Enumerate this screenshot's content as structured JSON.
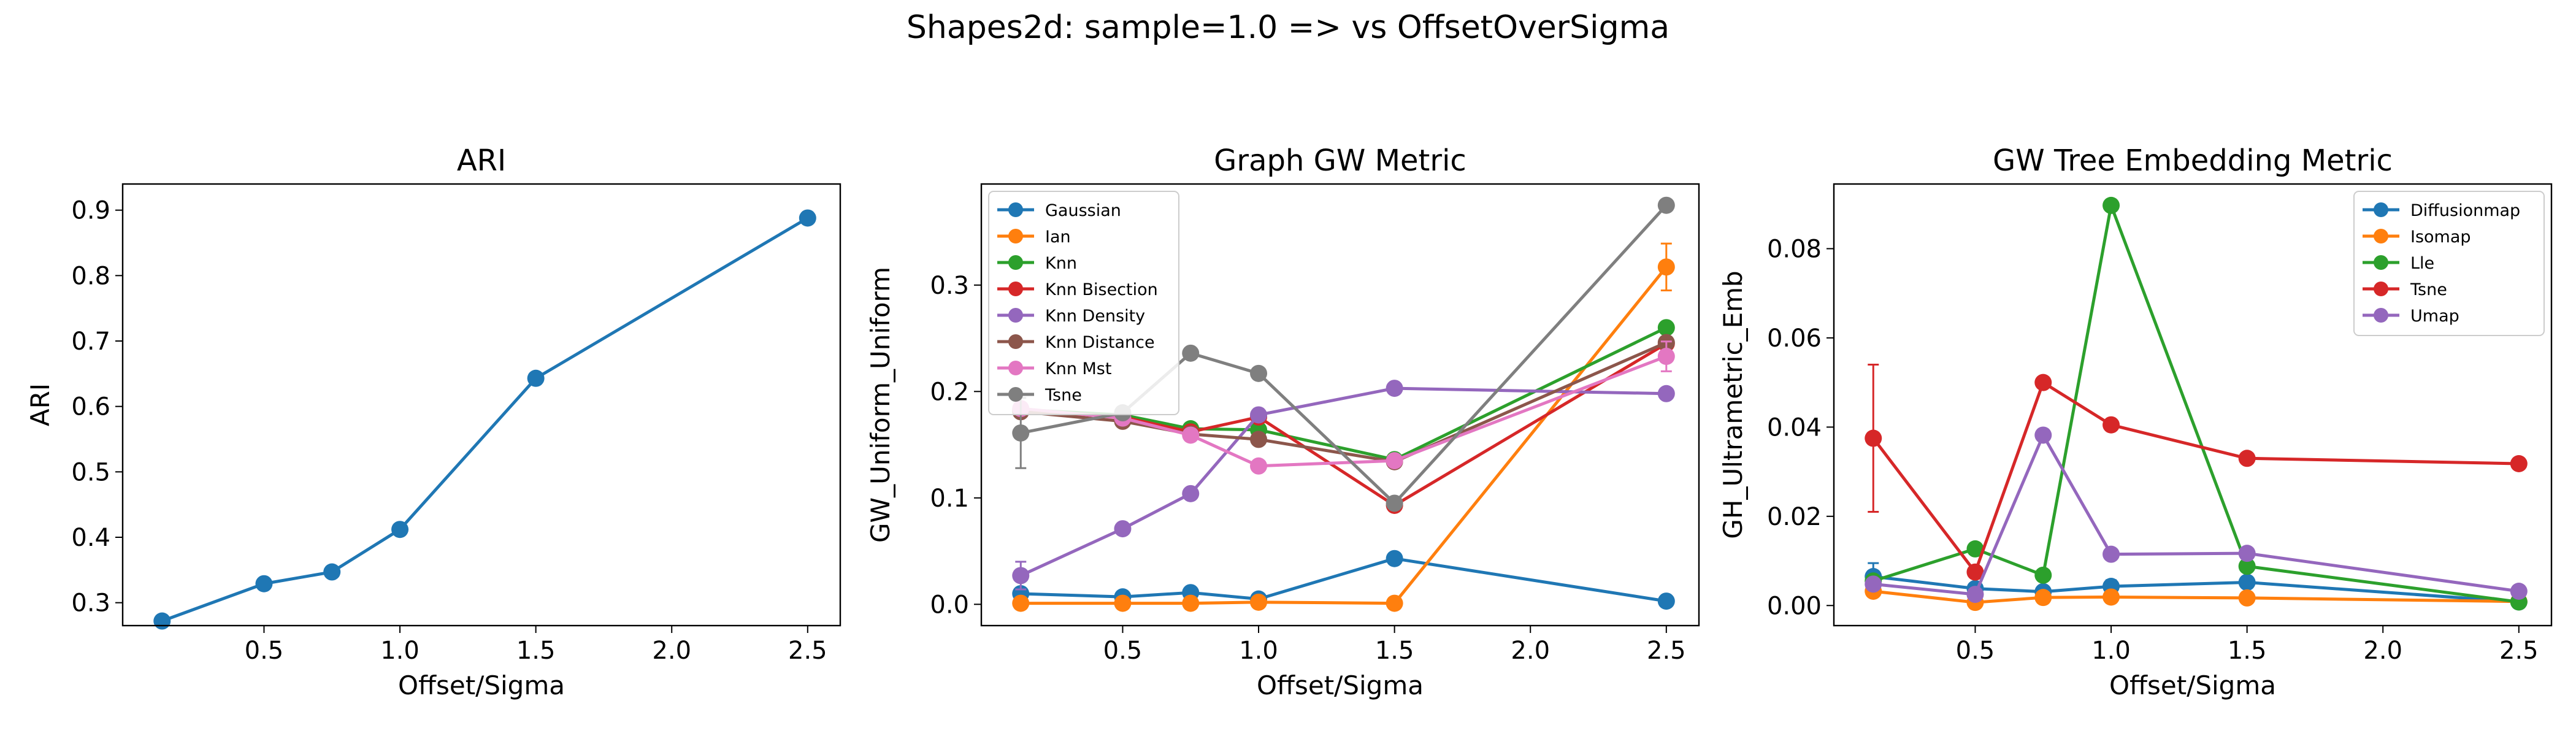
{
  "figure": {
    "suptitle": "Shapes2d: sample=1.0 => vs OffsetOverSigma"
  },
  "colors": {
    "Gaussian": "#1f77b4",
    "Ian": "#ff7f0e",
    "Knn": "#2ca02c",
    "Knn Bisection": "#d62728",
    "Knn Density": "#9467bd",
    "Knn Distance": "#8c564b",
    "Knn Mst": "#e377c2",
    "Tsne": "#7f7f7f"
  },
  "chart_data": [
    {
      "type": "line",
      "title": "ARI",
      "xlabel": "Offset/Sigma",
      "ylabel": "ARI",
      "xlim": [
        -0.02,
        2.62
      ],
      "ylim": [
        0.265,
        0.94
      ],
      "xticks": [
        0.5,
        1.0,
        1.5,
        2.0,
        2.5
      ],
      "xtick_labels": [
        "0.5",
        "1.0",
        "1.5",
        "2.0",
        "2.5"
      ],
      "yticks": [
        0.3,
        0.4,
        0.5,
        0.6,
        0.7,
        0.8,
        0.9
      ],
      "ytick_labels": [
        "0.3",
        "0.4",
        "0.5",
        "0.6",
        "0.7",
        "0.8",
        "0.9"
      ],
      "grid": false,
      "legend": null,
      "series": [
        {
          "color": "#1f77b4",
          "x": [
            0.125,
            0.5,
            0.75,
            1.0,
            1.5,
            2.5
          ],
          "y": [
            0.272,
            0.329,
            0.347,
            0.412,
            0.643,
            0.888
          ],
          "err": [
            0.008,
            0.004,
            0.004,
            0.004,
            0.003,
            0.003
          ]
        }
      ]
    },
    {
      "type": "line",
      "title": "Graph GW Metric",
      "xlabel": "Offset/Sigma",
      "ylabel": "GW_Uniform_Uniform",
      "xlim": [
        -0.02,
        2.62
      ],
      "ylim": [
        -0.02,
        0.395
      ],
      "xticks": [
        0.5,
        1.0,
        1.5,
        2.0,
        2.5
      ],
      "xtick_labels": [
        "0.5",
        "1.0",
        "1.5",
        "2.0",
        "2.5"
      ],
      "yticks": [
        0.0,
        0.1,
        0.2,
        0.3
      ],
      "ytick_labels": [
        "0.0",
        "0.1",
        "0.2",
        "0.3"
      ],
      "grid": false,
      "legend": "upper-left",
      "series": [
        {
          "name": "Gaussian",
          "color": "#1f77b4",
          "x": [
            0.125,
            0.5,
            0.75,
            1.0,
            1.5,
            2.5
          ],
          "y": [
            0.01,
            0.007,
            0.011,
            0.005,
            0.043,
            0.003
          ],
          "err": [
            0.003,
            0.002,
            0.002,
            0.002,
            0.002,
            0.001
          ]
        },
        {
          "name": "Ian",
          "color": "#ff7f0e",
          "x": [
            0.125,
            0.5,
            0.75,
            1.0,
            1.5,
            2.5
          ],
          "y": [
            0.001,
            0.001,
            0.001,
            0.002,
            0.001,
            0.317
          ],
          "err": [
            0.001,
            0.001,
            0.001,
            0.001,
            0.001,
            0.022
          ]
        },
        {
          "name": "Knn",
          "color": "#2ca02c",
          "x": [
            0.125,
            0.5,
            0.75,
            1.0,
            1.5,
            2.5
          ],
          "y": [
            0.183,
            0.178,
            0.165,
            0.164,
            0.136,
            0.26
          ],
          "err": [
            0.003,
            0.003,
            0.003,
            0.003,
            0.003,
            0.004
          ]
        },
        {
          "name": "Knn Bisection",
          "color": "#d62728",
          "x": [
            0.125,
            0.5,
            0.75,
            1.0,
            1.5,
            2.5
          ],
          "y": [
            0.182,
            0.176,
            0.162,
            0.176,
            0.093,
            0.245
          ],
          "err": [
            0.003,
            0.003,
            0.003,
            0.003,
            0.003,
            0.004
          ]
        },
        {
          "name": "Knn Density",
          "color": "#9467bd",
          "x": [
            0.125,
            0.5,
            0.75,
            1.0,
            1.5,
            2.5
          ],
          "y": [
            0.027,
            0.071,
            0.104,
            0.178,
            0.203,
            0.198
          ],
          "err": [
            0.013,
            0.003,
            0.003,
            0.003,
            0.003,
            0.003
          ]
        },
        {
          "name": "Knn Distance",
          "color": "#8c564b",
          "x": [
            0.125,
            0.5,
            0.75,
            1.0,
            1.5,
            2.5
          ],
          "y": [
            0.181,
            0.172,
            0.16,
            0.155,
            0.134,
            0.246
          ],
          "err": [
            0.003,
            0.003,
            0.003,
            0.003,
            0.003,
            0.004
          ]
        },
        {
          "name": "Knn Mst",
          "color": "#e377c2",
          "x": [
            0.125,
            0.5,
            0.75,
            1.0,
            1.5,
            2.5
          ],
          "y": [
            0.184,
            0.175,
            0.159,
            0.13,
            0.135,
            0.233
          ],
          "err": [
            0.003,
            0.003,
            0.003,
            0.003,
            0.003,
            0.014
          ]
        },
        {
          "name": "Tsne",
          "color": "#7f7f7f",
          "x": [
            0.125,
            0.5,
            0.75,
            1.0,
            1.5,
            2.5
          ],
          "y": [
            0.161,
            0.18,
            0.236,
            0.217,
            0.095,
            0.375
          ],
          "err": [
            0.033,
            0.004,
            0.003,
            0.003,
            0.003,
            0.003
          ]
        }
      ]
    },
    {
      "type": "line",
      "title": "GW Tree Embedding Metric",
      "xlabel": "Offset/Sigma",
      "ylabel": "GH_Ultrametric_Emb",
      "xlim": [
        -0.02,
        2.62
      ],
      "ylim": [
        -0.0045,
        0.0945
      ],
      "xticks": [
        0.5,
        1.0,
        1.5,
        2.0,
        2.5
      ],
      "xtick_labels": [
        "0.5",
        "1.0",
        "1.5",
        "2.0",
        "2.5"
      ],
      "yticks": [
        0.0,
        0.02,
        0.04,
        0.06,
        0.08
      ],
      "ytick_labels": [
        "0.00",
        "0.02",
        "0.04",
        "0.06",
        "0.08"
      ],
      "grid": false,
      "legend": "upper-right",
      "series": [
        {
          "name": "Diffusionmap",
          "color": "#1f77b4",
          "x": [
            0.125,
            0.5,
            0.75,
            1.0,
            1.5,
            2.5
          ],
          "y": [
            0.0065,
            0.0038,
            0.0031,
            0.0043,
            0.0052,
            0.0008
          ],
          "err": [
            0.003,
            0.0006,
            0.0005,
            0.0014,
            0.0006,
            0.0002
          ]
        },
        {
          "name": "Isomap",
          "color": "#ff7f0e",
          "x": [
            0.125,
            0.5,
            0.75,
            1.0,
            1.5,
            2.5
          ],
          "y": [
            0.0032,
            0.0007,
            0.0018,
            0.0019,
            0.0017,
            0.0009
          ],
          "err": [
            0.0012,
            0.0002,
            0.0003,
            0.0003,
            0.0002,
            0.0002
          ]
        },
        {
          "name": "Lle",
          "color": "#2ca02c",
          "x": [
            0.125,
            0.5,
            0.75,
            1.0,
            1.5,
            2.5
          ],
          "y": [
            0.0055,
            0.0127,
            0.0068,
            0.0897,
            0.0088,
            0.0008
          ],
          "err": [
            0.0008,
            0.0006,
            0.0004,
            0.0004,
            0.0004,
            0.0002
          ]
        },
        {
          "name": "Tsne",
          "color": "#d62728",
          "x": [
            0.125,
            0.5,
            0.75,
            1.0,
            1.5,
            2.5
          ],
          "y": [
            0.0375,
            0.0075,
            0.05,
            0.0405,
            0.033,
            0.0318
          ],
          "err": [
            0.0165,
            0.0008,
            0.0006,
            0.0005,
            0.0005,
            0.0005
          ]
        },
        {
          "name": "Umap",
          "color": "#9467bd",
          "x": [
            0.125,
            0.5,
            0.75,
            1.0,
            1.5,
            2.5
          ],
          "y": [
            0.0048,
            0.0025,
            0.0382,
            0.0115,
            0.0117,
            0.0032
          ],
          "err": [
            0.0006,
            0.0004,
            0.0005,
            0.0004,
            0.0004,
            0.0003
          ]
        }
      ]
    }
  ]
}
